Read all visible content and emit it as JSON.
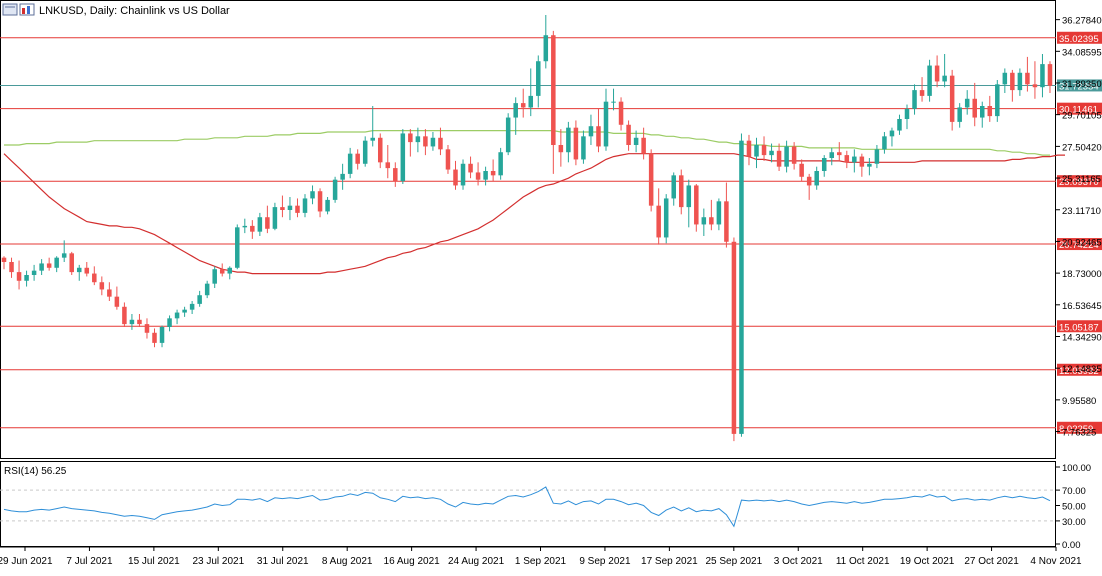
{
  "header": {
    "title": "LNKUSD, Daily:  Chainlink vs US Dollar"
  },
  "colors": {
    "bull": "#26a69a",
    "bear": "#ef5350",
    "ma_red": "#d32f2f",
    "ma_green": "#9ccc65",
    "level_line": "#e53935",
    "current_line": "#4a9a9a",
    "rsi_line": "#2f8fd8",
    "grid_dashed": "#c9c9c9"
  },
  "chart_data": [
    {
      "type": "candlestick",
      "symbol": "LNKUSD",
      "timeframe": "Daily",
      "description": "Chainlink vs US Dollar",
      "ylim": [
        6.0,
        37.5
      ],
      "y_ticks": [
        "36.27840",
        "34.08595",
        "31.89350",
        "29.70105",
        "27.50420",
        "25.31165",
        "23.11710",
        "20.92465",
        "18.73000",
        "16.53645",
        "14.34290",
        "12.14835",
        "9.95580",
        "7.76325"
      ],
      "x_tick_labels": [
        "29 Jun 2021",
        "7 Jul 2021",
        "15 Jul 2021",
        "23 Jul 2021",
        "31 Jul 2021",
        "8 Aug 2021",
        "16 Aug 2021",
        "24 Aug 2021",
        "1 Sep 2021",
        "9 Sep 2021",
        "17 Sep 2021",
        "25 Sep 2021",
        "3 Oct 2021",
        "11 Oct 2021",
        "19 Oct 2021",
        "27 Oct 2021",
        "4 Nov 2021"
      ],
      "current_price": {
        "value": 31.72354,
        "label": "31.72354"
      },
      "levels": [
        {
          "value": 35.02395,
          "label": "35.02395"
        },
        {
          "value": 30.11461,
          "label": "30.11461"
        },
        {
          "value": 25.0937,
          "label": "25.09370"
        },
        {
          "value": 20.74224,
          "label": "20.74224"
        },
        {
          "value": 15.05187,
          "label": "15.05187"
        },
        {
          "value": 12.03932,
          "label": "12.03932"
        },
        {
          "value": 8.02259,
          "label": "8.02259"
        }
      ],
      "candles": [
        [
          19.8,
          19.9,
          19.0,
          19.5
        ],
        [
          19.5,
          19.8,
          18.4,
          18.8
        ],
        [
          18.8,
          19.6,
          17.6,
          18.2
        ],
        [
          18.2,
          18.9,
          17.8,
          18.6
        ],
        [
          18.6,
          19.3,
          18.2,
          18.9
        ],
        [
          18.9,
          19.7,
          18.6,
          19.4
        ],
        [
          19.4,
          19.8,
          18.9,
          19.1
        ],
        [
          19.1,
          19.9,
          18.8,
          19.8
        ],
        [
          19.8,
          21.0,
          19.5,
          20.1
        ],
        [
          20.1,
          20.2,
          18.6,
          18.8
        ],
        [
          18.8,
          19.3,
          18.2,
          19.1
        ],
        [
          19.1,
          19.5,
          18.5,
          18.7
        ],
        [
          18.7,
          19.2,
          17.9,
          18.1
        ],
        [
          18.1,
          18.5,
          17.2,
          17.6
        ],
        [
          17.6,
          18.1,
          16.8,
          17.1
        ],
        [
          17.1,
          17.8,
          16.2,
          16.4
        ],
        [
          16.4,
          16.7,
          15.0,
          15.2
        ],
        [
          15.2,
          15.9,
          14.8,
          15.5
        ],
        [
          15.5,
          15.9,
          15.0,
          15.2
        ],
        [
          15.2,
          15.6,
          14.2,
          14.6
        ],
        [
          14.6,
          14.9,
          13.6,
          13.9
        ],
        [
          13.9,
          15.1,
          13.6,
          15.0
        ],
        [
          15.0,
          15.8,
          14.7,
          15.6
        ],
        [
          15.6,
          16.2,
          15.2,
          16.0
        ],
        [
          16.0,
          16.4,
          15.7,
          16.2
        ],
        [
          16.2,
          16.8,
          15.9,
          16.6
        ],
        [
          16.6,
          17.5,
          16.4,
          17.2
        ],
        [
          17.2,
          18.2,
          17.0,
          18.0
        ],
        [
          18.0,
          19.2,
          17.7,
          19.0
        ],
        [
          19.0,
          19.4,
          18.5,
          18.7
        ],
        [
          18.7,
          19.2,
          18.3,
          19.1
        ],
        [
          19.1,
          22.1,
          19.0,
          21.9
        ],
        [
          21.9,
          22.5,
          21.5,
          22.0
        ],
        [
          22.0,
          22.4,
          21.1,
          21.6
        ],
        [
          21.6,
          22.9,
          21.3,
          22.6
        ],
        [
          22.6,
          23.4,
          21.5,
          21.8
        ],
        [
          21.8,
          23.6,
          21.7,
          23.3
        ],
        [
          23.3,
          24.1,
          22.6,
          23.1
        ],
        [
          23.1,
          24.0,
          22.4,
          23.4
        ],
        [
          23.4,
          23.9,
          22.6,
          22.9
        ],
        [
          22.9,
          24.2,
          22.6,
          23.9
        ],
        [
          23.9,
          24.8,
          23.5,
          24.4
        ],
        [
          24.4,
          24.6,
          22.6,
          23.0
        ],
        [
          23.0,
          24.0,
          22.8,
          23.8
        ],
        [
          23.8,
          25.4,
          23.6,
          25.2
        ],
        [
          25.2,
          26.3,
          24.5,
          25.6
        ],
        [
          25.6,
          27.4,
          25.3,
          27.0
        ],
        [
          27.0,
          27.3,
          25.9,
          26.3
        ],
        [
          26.3,
          28.2,
          26.1,
          27.9
        ],
        [
          27.9,
          30.3,
          27.5,
          28.1
        ],
        [
          28.1,
          28.4,
          26.0,
          26.4
        ],
        [
          26.4,
          27.6,
          25.3,
          26.0
        ],
        [
          26.0,
          26.4,
          24.7,
          25.1
        ],
        [
          25.1,
          28.7,
          24.9,
          28.4
        ],
        [
          28.4,
          28.7,
          26.8,
          27.8
        ],
        [
          27.8,
          28.8,
          27.1,
          28.2
        ],
        [
          28.2,
          28.7,
          26.9,
          27.5
        ],
        [
          27.5,
          28.5,
          27.2,
          28.1
        ],
        [
          28.1,
          28.8,
          26.9,
          27.3
        ],
        [
          27.3,
          27.6,
          25.6,
          25.9
        ],
        [
          25.9,
          26.5,
          24.5,
          24.8
        ],
        [
          24.8,
          26.6,
          24.5,
          26.3
        ],
        [
          26.3,
          26.8,
          25.3,
          25.7
        ],
        [
          25.7,
          26.4,
          24.8,
          25.2
        ],
        [
          25.2,
          26.1,
          24.8,
          25.8
        ],
        [
          25.8,
          26.6,
          25.1,
          25.5
        ],
        [
          25.5,
          27.4,
          25.2,
          27.1
        ],
        [
          27.1,
          29.8,
          26.9,
          29.5
        ],
        [
          29.5,
          30.9,
          28.3,
          30.5
        ],
        [
          30.5,
          31.5,
          29.5,
          30.2
        ],
        [
          30.2,
          32.9,
          29.6,
          31.0
        ],
        [
          31.0,
          33.8,
          30.2,
          33.4
        ],
        [
          33.4,
          36.6,
          32.9,
          35.2
        ],
        [
          35.2,
          35.5,
          25.6,
          27.6
        ],
        [
          27.6,
          28.7,
          26.1,
          27.1
        ],
        [
          27.1,
          29.2,
          26.4,
          28.8
        ],
        [
          28.8,
          29.3,
          26.2,
          26.6
        ],
        [
          26.6,
          28.6,
          26.3,
          28.2
        ],
        [
          28.2,
          29.7,
          27.6,
          28.9
        ],
        [
          28.9,
          30.1,
          27.1,
          27.5
        ],
        [
          27.5,
          31.5,
          27.2,
          30.6
        ],
        [
          30.6,
          31.5,
          30.0,
          30.6
        ],
        [
          30.6,
          30.9,
          28.6,
          29.0
        ],
        [
          29.0,
          29.3,
          27.2,
          27.6
        ],
        [
          27.6,
          28.6,
          27.1,
          28.1
        ],
        [
          28.1,
          28.8,
          26.6,
          27.0
        ],
        [
          27.0,
          27.3,
          23.0,
          23.4
        ],
        [
          23.4,
          24.6,
          20.7,
          21.2
        ],
        [
          21.2,
          24.2,
          20.8,
          23.9
        ],
        [
          23.9,
          25.7,
          23.4,
          25.5
        ],
        [
          25.5,
          25.9,
          22.8,
          23.3
        ],
        [
          23.3,
          25.2,
          21.9,
          24.8
        ],
        [
          24.8,
          24.9,
          21.6,
          22.1
        ],
        [
          22.1,
          23.2,
          21.3,
          22.6
        ],
        [
          22.6,
          23.8,
          21.7,
          22.1
        ],
        [
          22.1,
          23.9,
          21.7,
          23.7
        ],
        [
          23.7,
          25.0,
          20.5,
          20.9
        ],
        [
          20.9,
          21.2,
          7.1,
          7.6
        ],
        [
          7.6,
          28.4,
          7.4,
          27.9
        ],
        [
          27.9,
          28.3,
          26.2,
          26.8
        ],
        [
          26.8,
          28.1,
          26.0,
          27.6
        ],
        [
          27.6,
          28.2,
          26.5,
          26.9
        ],
        [
          26.9,
          27.7,
          26.4,
          27.2
        ],
        [
          27.2,
          27.7,
          25.8,
          26.1
        ],
        [
          26.1,
          27.9,
          25.7,
          27.5
        ],
        [
          27.5,
          27.8,
          25.9,
          26.3
        ],
        [
          26.3,
          26.6,
          25.1,
          25.4
        ],
        [
          25.4,
          25.6,
          23.8,
          24.8
        ],
        [
          24.8,
          26.1,
          24.5,
          25.8
        ],
        [
          25.8,
          26.9,
          25.4,
          26.7
        ],
        [
          26.7,
          27.4,
          26.2,
          27.1
        ],
        [
          27.1,
          27.8,
          26.5,
          26.9
        ],
        [
          26.9,
          27.2,
          26.0,
          26.4
        ],
        [
          26.4,
          27.3,
          25.7,
          26.8
        ],
        [
          26.8,
          27.0,
          25.4,
          26.1
        ],
        [
          26.1,
          26.7,
          25.5,
          26.3
        ],
        [
          26.3,
          27.6,
          26.0,
          27.3
        ],
        [
          27.3,
          28.5,
          27.0,
          28.2
        ],
        [
          28.2,
          28.8,
          27.5,
          28.6
        ],
        [
          28.6,
          29.7,
          28.3,
          29.4
        ],
        [
          29.4,
          30.4,
          28.7,
          30.1
        ],
        [
          30.1,
          31.8,
          29.7,
          31.4
        ],
        [
          31.4,
          32.3,
          30.6,
          31.0
        ],
        [
          31.0,
          33.5,
          30.6,
          33.1
        ],
        [
          33.1,
          33.8,
          31.6,
          32.0
        ],
        [
          32.0,
          33.9,
          31.6,
          32.4
        ],
        [
          32.4,
          32.8,
          28.6,
          29.2
        ],
        [
          29.2,
          30.5,
          28.8,
          30.2
        ],
        [
          30.2,
          31.4,
          29.7,
          30.8
        ],
        [
          30.8,
          31.9,
          28.9,
          29.5
        ],
        [
          29.5,
          30.6,
          28.8,
          30.3
        ],
        [
          30.3,
          31.0,
          29.2,
          29.6
        ],
        [
          29.6,
          32.1,
          29.2,
          31.8
        ],
        [
          31.8,
          32.9,
          31.2,
          32.6
        ],
        [
          32.6,
          32.8,
          30.6,
          31.4
        ],
        [
          31.4,
          32.9,
          31.0,
          32.6
        ],
        [
          32.6,
          33.7,
          31.3,
          31.8
        ],
        [
          31.8,
          33.4,
          30.8,
          31.6
        ],
        [
          31.6,
          33.9,
          30.9,
          33.2
        ],
        [
          33.2,
          33.4,
          31.2,
          31.7
        ]
      ],
      "ma_slow": [
        27.6,
        27.6,
        27.6,
        27.7,
        27.7,
        27.7,
        27.7,
        27.8,
        27.8,
        27.8,
        27.8,
        27.8,
        27.9,
        27.9,
        27.9,
        27.9,
        27.9,
        27.9,
        27.9,
        27.9,
        27.9,
        27.9,
        27.9,
        27.9,
        28.0,
        28.0,
        28.0,
        28.0,
        28.1,
        28.1,
        28.1,
        28.1,
        28.2,
        28.2,
        28.2,
        28.2,
        28.3,
        28.3,
        28.3,
        28.4,
        28.4,
        28.4,
        28.4,
        28.5,
        28.5,
        28.5,
        28.5,
        28.5,
        28.5,
        28.6,
        28.6,
        28.6,
        28.6,
        28.6,
        28.6,
        28.6,
        28.6,
        28.6,
        28.6,
        28.6,
        28.6,
        28.6,
        28.6,
        28.6,
        28.6,
        28.6,
        28.6,
        28.6,
        28.6,
        28.6,
        28.6,
        28.6,
        28.6,
        28.6,
        28.5,
        28.5,
        28.5,
        28.5,
        28.5,
        28.5,
        28.5,
        28.4,
        28.4,
        28.4,
        28.4,
        28.4,
        28.3,
        28.3,
        28.2,
        28.2,
        28.1,
        28.1,
        28.0,
        28.0,
        27.9,
        27.8,
        27.8,
        27.7,
        27.7,
        27.6,
        27.6,
        27.6,
        27.5,
        27.5,
        27.5,
        27.5,
        27.5,
        27.4,
        27.4,
        27.4,
        27.4,
        27.4,
        27.4,
        27.4,
        27.3,
        27.3,
        27.3,
        27.3,
        27.3,
        27.3,
        27.3,
        27.3,
        27.3,
        27.3,
        27.3,
        27.3,
        27.3,
        27.3,
        27.3,
        27.3,
        27.3,
        27.3,
        27.2,
        27.2,
        27.1,
        27.1,
        27.0,
        27.0,
        26.9,
        26.9
      ],
      "ma_fast": [
        27.0,
        26.5,
        26.0,
        25.5,
        25.0,
        24.5,
        24.0,
        23.6,
        23.2,
        22.9,
        22.6,
        22.3,
        22.2,
        22.1,
        22.0,
        22.0,
        21.9,
        21.9,
        21.8,
        21.6,
        21.4,
        21.1,
        20.8,
        20.5,
        20.2,
        19.9,
        19.6,
        19.4,
        19.2,
        19.0,
        18.9,
        18.8,
        18.8,
        18.7,
        18.7,
        18.7,
        18.7,
        18.7,
        18.7,
        18.7,
        18.7,
        18.7,
        18.7,
        18.8,
        18.8,
        18.9,
        19.0,
        19.1,
        19.2,
        19.4,
        19.6,
        19.8,
        19.9,
        20.1,
        20.2,
        20.4,
        20.5,
        20.7,
        20.9,
        21.0,
        21.2,
        21.4,
        21.6,
        21.8,
        22.1,
        22.4,
        22.8,
        23.2,
        23.6,
        24.0,
        24.3,
        24.6,
        24.8,
        24.9,
        25.1,
        25.3,
        25.6,
        25.8,
        26.0,
        26.3,
        26.6,
        26.8,
        26.9,
        27.0,
        27.0,
        27.0,
        27.0,
        27.0,
        27.0,
        27.0,
        27.0,
        27.0,
        27.0,
        27.0,
        27.0,
        27.0,
        27.0,
        27.0,
        26.9,
        26.8,
        26.6,
        26.6,
        26.5,
        26.5,
        26.5,
        26.5,
        26.5,
        26.5,
        26.5,
        26.5,
        26.5,
        26.5,
        26.4,
        26.4,
        26.4,
        26.4,
        26.4,
        26.4,
        26.4,
        26.4,
        26.4,
        26.4,
        26.5,
        26.5,
        26.5,
        26.5,
        26.5,
        26.5,
        26.5,
        26.5,
        26.5,
        26.5,
        26.5,
        26.5,
        26.6,
        26.6,
        26.7,
        26.7,
        26.8,
        26.8,
        26.9,
        26.9
      ]
    },
    {
      "type": "line",
      "label": "RSI(14) 56.25",
      "ylim": [
        0,
        100
      ],
      "y_ticks": [
        "100.00",
        "70.00",
        "50.00",
        "30.00",
        "0.00"
      ],
      "reference_levels": [
        70,
        30
      ],
      "values": [
        45,
        43,
        42,
        42,
        44,
        45,
        44,
        46,
        48,
        46,
        45,
        44,
        43,
        41,
        40,
        38,
        36,
        37,
        36,
        34,
        32,
        38,
        40,
        42,
        43,
        44,
        46,
        48,
        52,
        50,
        51,
        58,
        58,
        57,
        59,
        55,
        60,
        59,
        60,
        59,
        61,
        63,
        57,
        58,
        61,
        62,
        65,
        63,
        67,
        66,
        60,
        58,
        55,
        62,
        60,
        61,
        59,
        60,
        58,
        52,
        48,
        54,
        52,
        51,
        53,
        52,
        57,
        62,
        63,
        61,
        64,
        68,
        74,
        53,
        52,
        56,
        51,
        55,
        56,
        52,
        58,
        58,
        55,
        51,
        53,
        50,
        41,
        37,
        44,
        48,
        43,
        47,
        42,
        44,
        43,
        46,
        38,
        23,
        57,
        56,
        57,
        56,
        57,
        55,
        57,
        55,
        52,
        50,
        52,
        54,
        55,
        54,
        53,
        55,
        53,
        54,
        56,
        58,
        58,
        59,
        60,
        62,
        61,
        64,
        61,
        62,
        56,
        58,
        59,
        57,
        58,
        57,
        60,
        62,
        60,
        62,
        60,
        59,
        61,
        56.25
      ]
    }
  ]
}
